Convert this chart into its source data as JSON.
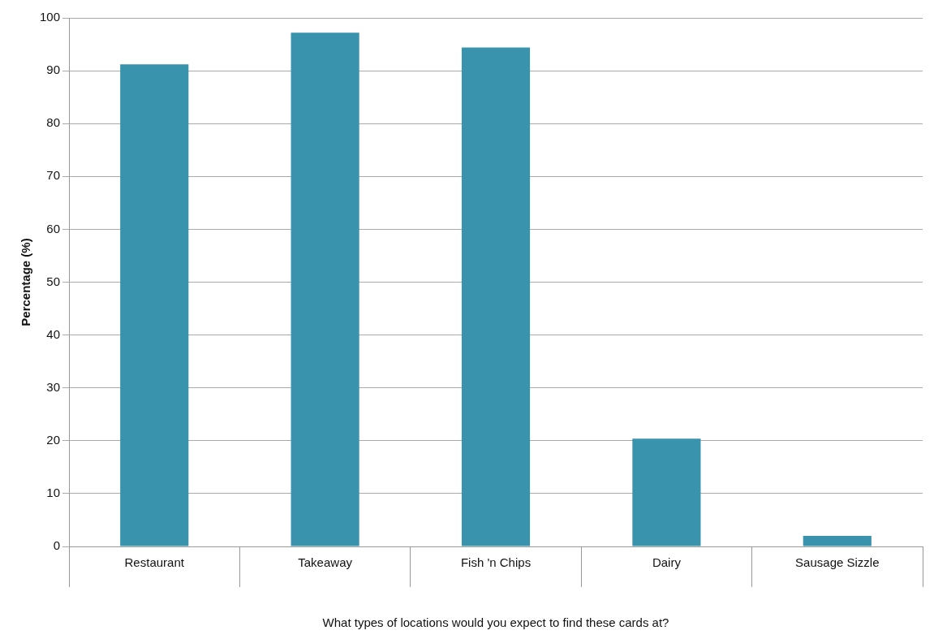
{
  "chart_data": {
    "type": "bar",
    "xlabel": "What types of locations would you expect to find these cards at?",
    "ylabel": "Percentage (%)",
    "categories": [
      "Restaurant",
      "Takeaway",
      "Fish 'n Chips",
      "Dairy",
      "Sausage Sizzle"
    ],
    "values": [
      91.2,
      97.2,
      94.4,
      20.4,
      2.0
    ],
    "color": "#3a93ad",
    "ylim": [
      0,
      100
    ],
    "yticks": [
      0,
      10,
      20,
      30,
      40,
      50,
      60,
      70,
      80,
      90,
      100
    ],
    "grid": "y",
    "legend": false
  }
}
